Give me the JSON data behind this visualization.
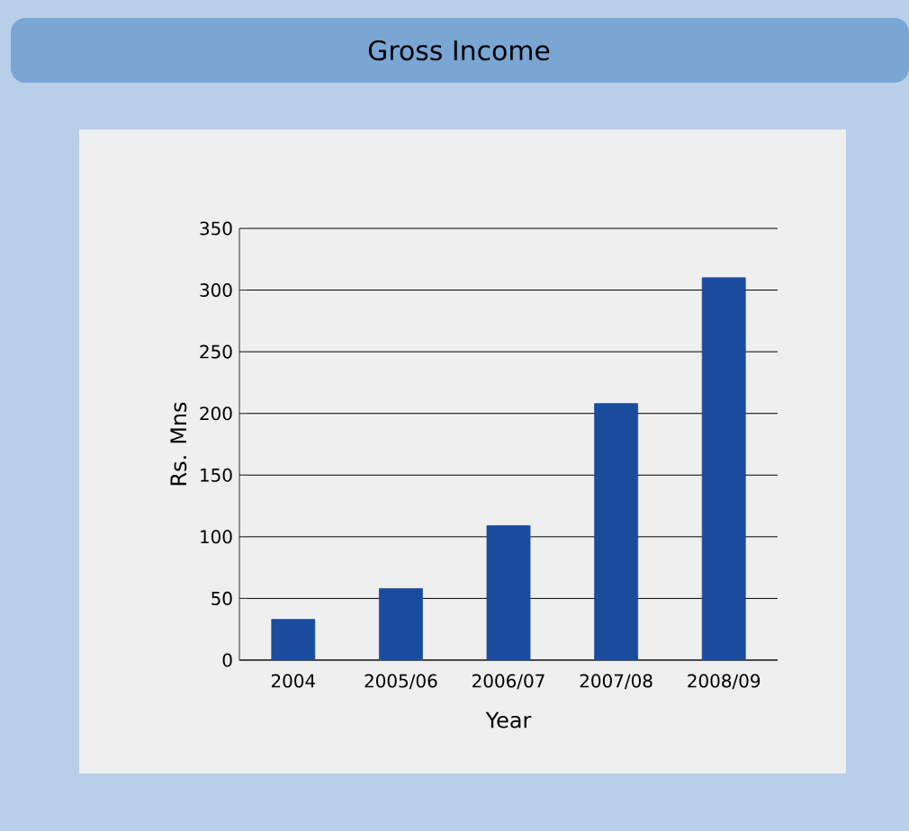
{
  "chart_data": {
    "type": "bar",
    "title": "Gross Income",
    "xlabel": "Year",
    "ylabel": "Rs. Mns",
    "categories": [
      "2004",
      "2005/06",
      "2006/07",
      "2007/08",
      "2008/09"
    ],
    "values": [
      33,
      58,
      109,
      208,
      310
    ],
    "color": "#1a4c9e",
    "ylim": [
      0,
      350
    ],
    "yticks": [
      0,
      50,
      100,
      150,
      200,
      250,
      300,
      350
    ],
    "grid": "y"
  }
}
